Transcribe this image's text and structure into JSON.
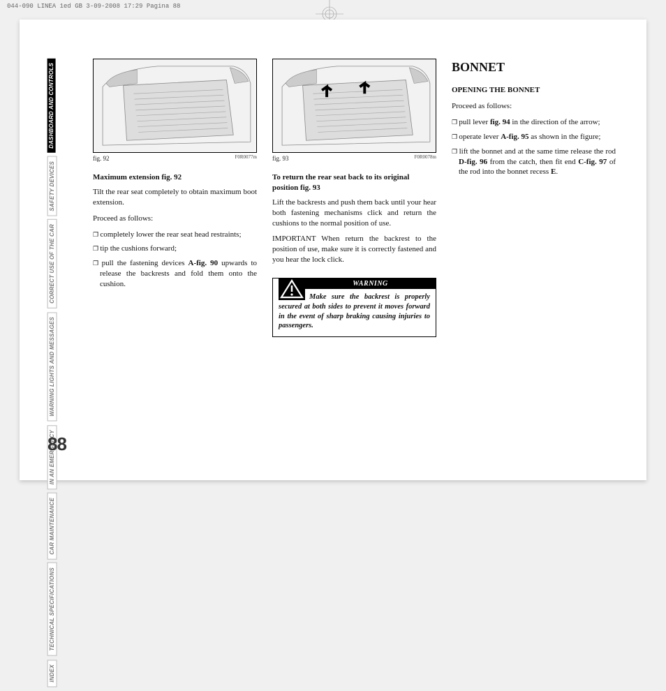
{
  "header": {
    "strip": "044-090 LINEA 1ed GB  3-09-2008  17:29  Pagina 88"
  },
  "sidebar": {
    "tabs": [
      {
        "label": "DASHBOARD AND CONTROLS",
        "active": true
      },
      {
        "label": "SAFETY DEVICES",
        "active": false
      },
      {
        "label": "CORRECT USE OF THE CAR",
        "active": false
      },
      {
        "label": "WARNING LIGHTS AND MESSAGES",
        "active": false
      },
      {
        "label": "IN AN EMERGENCY",
        "active": false
      },
      {
        "label": "CAR MAINTENANCE",
        "active": false
      },
      {
        "label": "TECHNICAL SPECIFICATIONS",
        "active": false
      },
      {
        "label": "INDEX",
        "active": false
      }
    ]
  },
  "col1": {
    "fig_caption": "fig. 92",
    "fig_code": "F0R0077m",
    "heading": "Maximum extension fig. 92",
    "p1": "Tilt the rear seat completely to obtain maximum boot extension.",
    "p2": "Proceed as follows:",
    "items": [
      "completely lower the rear seat head restraints;",
      "tip the cushions forward;",
      "pull the fastening devices <b>A-fig. 90</b> upwards to release the backrests and fold them onto the cushion."
    ]
  },
  "col2": {
    "fig_caption": "fig. 93",
    "fig_code": "F0R0078m",
    "heading": "To return the rear seat back to its original position fig. 93",
    "p1": "Lift the backrests and push them back until your hear both fastening mechanisms click and return the cushions to the normal position of use.",
    "p2": "IMPORTANT When return the backrest to the position of use, make sure it is correctly fastened and you hear the lock click.",
    "warning_label": "WARNING",
    "warning_text": "Make sure the backrest is properly secured at both sides to prevent it moves forward in the event of sharp braking causing injuries to passengers."
  },
  "col3": {
    "title": "BONNET",
    "subtitle": "OPENING THE BONNET",
    "p1": "Proceed as follows:",
    "items": [
      "pull lever <b>fig. 94</b> in the direction of the arrow;",
      "operate lever <b>A-fig. 95</b> as shown in the figure;",
      "lift the bonnet and at the same time release the rod <b>D-fig. 96</b> from the catch, then fit end <b>C-fig. 97</b>  of the rod  into the bonnet recess <b>E</b>."
    ]
  },
  "page_number": "88",
  "colors": {
    "text": "#111111",
    "gray": "#777777",
    "bg": "#ffffff",
    "black": "#000000"
  }
}
